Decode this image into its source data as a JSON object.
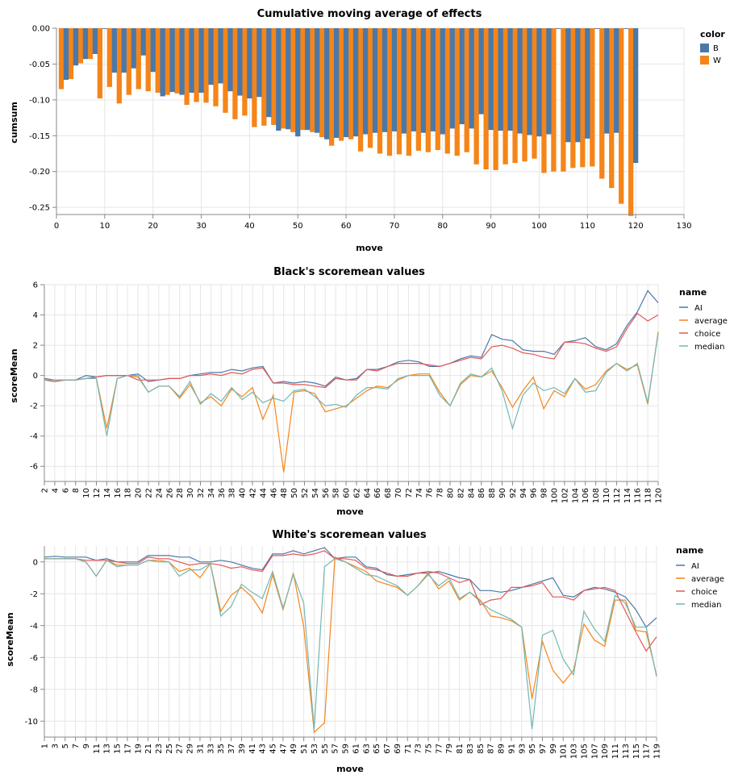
{
  "colors": {
    "B": "#4c78a8",
    "W": "#f58518",
    "AI": "#4c78a8",
    "average": "#f58518",
    "choice": "#e45756",
    "median": "#72b7b2"
  },
  "chart_data": [
    {
      "type": "bar",
      "title": "Cumulative moving average of effects",
      "xlabel": "move",
      "ylabel": "cumsum",
      "xlim": [
        0,
        130
      ],
      "ylim": [
        -0.26,
        0
      ],
      "x_ticks": [
        "0",
        "10",
        "20",
        "30",
        "40",
        "50",
        "60",
        "70",
        "80",
        "90",
        "100",
        "110",
        "120",
        "130"
      ],
      "y_ticks": [
        "0.00",
        "-0.05",
        "-0.10",
        "-0.15",
        "-0.20",
        "-0.25"
      ],
      "legend": {
        "title": "color",
        "position": "right",
        "entries": [
          "B",
          "W"
        ]
      },
      "series": [
        {
          "name": "W",
          "x": [
            1,
            3,
            5,
            7,
            9,
            11,
            13,
            15,
            17,
            19,
            21,
            23,
            25,
            27,
            29,
            31,
            33,
            35,
            37,
            39,
            41,
            43,
            45,
            47,
            49,
            51,
            53,
            55,
            57,
            59,
            61,
            63,
            65,
            67,
            69,
            71,
            73,
            75,
            77,
            79,
            81,
            83,
            85,
            87,
            89,
            91,
            93,
            95,
            97,
            99,
            101,
            103,
            105,
            107,
            109,
            111,
            113,
            115,
            117,
            119
          ],
          "values": [
            -0.085,
            -0.071,
            -0.049,
            -0.043,
            -0.098,
            -0.082,
            -0.105,
            -0.093,
            -0.085,
            -0.088,
            -0.09,
            -0.093,
            -0.091,
            -0.107,
            -0.103,
            -0.104,
            -0.109,
            -0.118,
            -0.127,
            -0.122,
            -0.138,
            -0.136,
            -0.135,
            -0.14,
            -0.145,
            -0.142,
            -0.145,
            -0.152,
            -0.164,
            -0.157,
            -0.155,
            -0.172,
            -0.167,
            -0.175,
            -0.178,
            -0.176,
            -0.178,
            -0.171,
            -0.173,
            -0.17,
            -0.175,
            -0.178,
            -0.173,
            -0.19,
            -0.197,
            -0.198,
            -0.19,
            -0.188,
            -0.186,
            -0.182,
            -0.202,
            -0.2,
            -0.2,
            -0.195,
            -0.194,
            -0.193,
            -0.21,
            -0.223,
            -0.245,
            -0.262
          ]
        },
        {
          "name": "B",
          "x": [
            2,
            4,
            6,
            8,
            10,
            12,
            14,
            16,
            18,
            20,
            22,
            24,
            26,
            28,
            30,
            32,
            34,
            36,
            38,
            40,
            42,
            44,
            46,
            48,
            50,
            52,
            54,
            56,
            58,
            60,
            62,
            64,
            66,
            68,
            70,
            72,
            74,
            76,
            78,
            80,
            82,
            84,
            86,
            88,
            90,
            92,
            94,
            96,
            98,
            100,
            102,
            104,
            106,
            108,
            110,
            112,
            114,
            116,
            118,
            120
          ],
          "values": [
            -0.072,
            -0.052,
            -0.043,
            -0.036,
            -0.001,
            -0.062,
            -0.062,
            -0.056,
            -0.038,
            -0.061,
            -0.095,
            -0.089,
            -0.093,
            -0.09,
            -0.09,
            -0.079,
            -0.077,
            -0.088,
            -0.094,
            -0.098,
            -0.096,
            -0.124,
            -0.143,
            -0.141,
            -0.151,
            -0.142,
            -0.146,
            -0.155,
            -0.153,
            -0.152,
            -0.151,
            -0.148,
            -0.146,
            -0.145,
            -0.144,
            -0.147,
            -0.144,
            -0.146,
            -0.144,
            -0.148,
            -0.14,
            -0.134,
            -0.14,
            -0.12,
            -0.142,
            -0.143,
            -0.143,
            -0.147,
            -0.149,
            -0.151,
            -0.148,
            -0.001,
            -0.159,
            -0.159,
            -0.154,
            -0.001,
            -0.147,
            -0.146,
            -0.001,
            -0.188
          ]
        }
      ]
    },
    {
      "type": "line",
      "title": "Black's scoremean values",
      "xlabel": "move",
      "ylabel": "scoreMean",
      "ylim": [
        -7,
        6
      ],
      "y_ticks": [
        "6",
        "4",
        "2",
        "0",
        "-2",
        "-4",
        "-6"
      ],
      "x": [
        2,
        4,
        6,
        8,
        10,
        12,
        14,
        16,
        18,
        20,
        22,
        24,
        26,
        28,
        30,
        32,
        34,
        36,
        38,
        40,
        42,
        44,
        46,
        48,
        50,
        52,
        54,
        56,
        58,
        60,
        62,
        64,
        66,
        68,
        70,
        72,
        74,
        76,
        78,
        80,
        82,
        84,
        86,
        88,
        90,
        92,
        94,
        96,
        98,
        100,
        102,
        104,
        106,
        108,
        110,
        112,
        114,
        116,
        118,
        120
      ],
      "legend": {
        "title": "name",
        "position": "right",
        "entries": [
          "AI",
          "average",
          "choice",
          "median"
        ]
      },
      "series": [
        {
          "name": "AI",
          "values": [
            -0.2,
            -0.3,
            -0.3,
            -0.3,
            0.0,
            -0.1,
            0.0,
            0.0,
            0.0,
            0.1,
            -0.4,
            -0.3,
            -0.2,
            -0.2,
            0.0,
            0.1,
            0.2,
            0.2,
            0.4,
            0.3,
            0.5,
            0.6,
            -0.5,
            -0.4,
            -0.5,
            -0.4,
            -0.5,
            -0.7,
            -0.1,
            -0.3,
            -0.2,
            0.4,
            0.4,
            0.6,
            0.9,
            1.0,
            0.9,
            0.6,
            0.6,
            0.8,
            1.1,
            1.3,
            1.2,
            2.7,
            2.4,
            2.3,
            1.7,
            1.6,
            1.6,
            1.4,
            2.2,
            2.3,
            2.5,
            1.9,
            1.7,
            2.1,
            3.3,
            4.2,
            5.6,
            4.8
          ]
        },
        {
          "name": "average",
          "values": [
            -0.3,
            -0.4,
            -0.3,
            -0.3,
            -0.2,
            -0.2,
            -3.5,
            -0.2,
            0.0,
            -0.1,
            -1.1,
            -0.7,
            -0.7,
            -1.5,
            -0.6,
            -1.8,
            -1.4,
            -2.0,
            -0.9,
            -1.4,
            -0.8,
            -2.9,
            -1.3,
            -6.4,
            -1.1,
            -1.0,
            -1.2,
            -2.4,
            -2.2,
            -2.0,
            -1.5,
            -1.0,
            -0.7,
            -0.8,
            -0.3,
            0.0,
            0.1,
            0.1,
            -1.1,
            -2.0,
            -0.6,
            0.0,
            -0.1,
            0.3,
            -0.8,
            -2.1,
            -1.0,
            -0.1,
            -2.2,
            -1.0,
            -1.4,
            -0.2,
            -0.9,
            -0.6,
            0.3,
            0.8,
            0.4,
            0.7,
            -1.9,
            2.9
          ]
        },
        {
          "name": "choice",
          "values": [
            -0.3,
            -0.4,
            -0.3,
            -0.3,
            -0.2,
            -0.1,
            0.0,
            0.0,
            0.0,
            -0.3,
            -0.3,
            -0.3,
            -0.2,
            -0.2,
            0.0,
            0.0,
            0.1,
            0.0,
            0.2,
            0.1,
            0.4,
            0.5,
            -0.5,
            -0.5,
            -0.6,
            -0.6,
            -0.7,
            -0.8,
            -0.2,
            -0.3,
            -0.3,
            0.4,
            0.3,
            0.6,
            0.8,
            0.8,
            0.8,
            0.7,
            0.6,
            0.8,
            1.0,
            1.2,
            1.1,
            1.9,
            2.0,
            1.8,
            1.5,
            1.4,
            1.2,
            1.1,
            2.2,
            2.2,
            2.1,
            1.8,
            1.6,
            1.9,
            3.1,
            4.1,
            3.6,
            4.0
          ]
        },
        {
          "name": "median",
          "values": [
            -0.3,
            -0.3,
            -0.3,
            -0.3,
            -0.2,
            -0.2,
            -4.0,
            -0.2,
            0.0,
            0.0,
            -1.1,
            -0.7,
            -0.7,
            -1.4,
            -0.4,
            -1.9,
            -1.2,
            -1.7,
            -0.8,
            -1.6,
            -1.1,
            -1.8,
            -1.5,
            -1.7,
            -1.0,
            -0.9,
            -1.4,
            -2.0,
            -1.9,
            -2.1,
            -1.3,
            -0.8,
            -0.8,
            -0.9,
            -0.2,
            0.0,
            0.0,
            0.0,
            -1.3,
            -2.0,
            -0.5,
            0.1,
            -0.1,
            0.5,
            -1.0,
            -3.5,
            -1.3,
            -0.5,
            -1.0,
            -0.8,
            -1.2,
            -0.2,
            -1.1,
            -1.0,
            0.2,
            0.8,
            0.3,
            0.8,
            -1.8,
            2.8
          ]
        }
      ]
    },
    {
      "type": "line",
      "title": "White's scoremean values",
      "xlabel": "move",
      "ylabel": "scoreMean",
      "ylim": [
        -11,
        1
      ],
      "y_ticks": [
        "0",
        "-2",
        "-4",
        "-6",
        "-8",
        "-10"
      ],
      "x": [
        1,
        3,
        5,
        7,
        9,
        11,
        13,
        15,
        17,
        19,
        21,
        23,
        25,
        27,
        29,
        31,
        33,
        35,
        37,
        39,
        41,
        43,
        45,
        47,
        49,
        51,
        53,
        55,
        57,
        59,
        61,
        63,
        65,
        67,
        69,
        71,
        73,
        75,
        77,
        79,
        81,
        83,
        85,
        87,
        89,
        91,
        93,
        95,
        97,
        99,
        101,
        103,
        105,
        107,
        109,
        111,
        113,
        115,
        117,
        119
      ],
      "legend": {
        "title": "name",
        "position": "right",
        "entries": [
          "AI",
          "average",
          "choice",
          "median"
        ]
      },
      "series": [
        {
          "name": "AI",
          "values": [
            0.3,
            0.35,
            0.3,
            0.3,
            0.3,
            0.1,
            0.2,
            0.0,
            0.0,
            0.0,
            0.4,
            0.4,
            0.4,
            0.3,
            0.3,
            0.0,
            0.0,
            0.1,
            0.0,
            -0.2,
            -0.4,
            -0.5,
            0.5,
            0.5,
            0.7,
            0.5,
            0.7,
            0.9,
            0.2,
            0.3,
            0.3,
            -0.3,
            -0.4,
            -0.8,
            -0.9,
            -0.8,
            -0.7,
            -0.7,
            -0.6,
            -0.8,
            -1.0,
            -1.1,
            -1.8,
            -1.8,
            -1.9,
            -1.8,
            -1.6,
            -1.4,
            -1.2,
            -1.0,
            -2.1,
            -2.2,
            -1.8,
            -1.6,
            -1.7,
            -1.9,
            -2.2,
            -3.0,
            -4.1,
            -3.5
          ]
        },
        {
          "name": "average",
          "values": [
            0.2,
            0.2,
            0.2,
            0.2,
            0.0,
            -0.9,
            0.1,
            -0.2,
            -0.2,
            -0.2,
            0.1,
            0.1,
            0.0,
            -0.6,
            -0.4,
            -1.0,
            -0.1,
            -3.1,
            -2.1,
            -1.6,
            -2.2,
            -3.2,
            -0.8,
            -3.0,
            -0.7,
            -4.1,
            -10.7,
            -10.1,
            0.3,
            0.0,
            -0.3,
            -0.6,
            -1.2,
            -1.4,
            -1.6,
            -2.1,
            -1.5,
            -0.7,
            -1.7,
            -1.2,
            -2.4,
            -1.9,
            -2.4,
            -3.4,
            -3.5,
            -3.7,
            -4.1,
            -8.6,
            -5.0,
            -6.8,
            -7.6,
            -6.8,
            -3.9,
            -4.9,
            -5.3,
            -2.4,
            -2.4,
            -4.3,
            -4.4,
            -7.1
          ]
        },
        {
          "name": "choice",
          "values": [
            0.2,
            0.2,
            0.2,
            0.2,
            0.1,
            0.1,
            0.1,
            0.0,
            -0.1,
            -0.1,
            0.3,
            0.2,
            0.2,
            0.0,
            -0.2,
            -0.1,
            -0.1,
            -0.2,
            -0.4,
            -0.3,
            -0.5,
            -0.6,
            0.4,
            0.4,
            0.5,
            0.4,
            0.5,
            0.7,
            0.2,
            0.2,
            0.1,
            -0.4,
            -0.5,
            -0.7,
            -0.9,
            -0.9,
            -0.7,
            -0.6,
            -0.7,
            -1.0,
            -1.3,
            -1.1,
            -2.7,
            -2.4,
            -2.3,
            -1.6,
            -1.6,
            -1.5,
            -1.3,
            -2.2,
            -2.2,
            -2.4,
            -1.8,
            -1.7,
            -1.6,
            -1.8,
            -3.1,
            -4.4,
            -5.6,
            -4.7
          ]
        },
        {
          "name": "median",
          "values": [
            0.2,
            0.2,
            0.2,
            0.2,
            0.0,
            -0.9,
            0.1,
            -0.3,
            -0.2,
            -0.2,
            0.1,
            0.0,
            0.0,
            -0.9,
            -0.5,
            -0.5,
            -0.1,
            -3.4,
            -2.8,
            -1.4,
            -1.9,
            -2.3,
            -0.6,
            -2.9,
            -0.8,
            -2.6,
            -10.5,
            -0.3,
            0.2,
            0.0,
            -0.4,
            -0.8,
            -0.9,
            -1.2,
            -1.5,
            -2.1,
            -1.5,
            -0.8,
            -1.5,
            -1.0,
            -2.3,
            -1.9,
            -2.5,
            -3.0,
            -3.3,
            -3.6,
            -4.1,
            -10.5,
            -4.6,
            -4.3,
            -6.1,
            -7.1,
            -3.1,
            -4.2,
            -5.0,
            -2.1,
            -2.6,
            -4.1,
            -4.1,
            -7.2
          ]
        }
      ]
    }
  ]
}
